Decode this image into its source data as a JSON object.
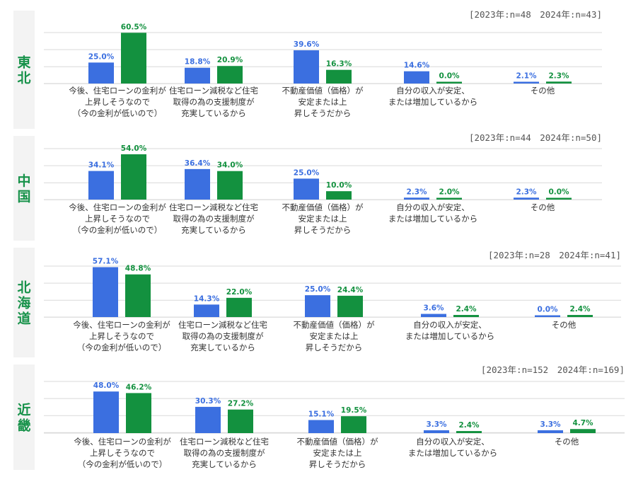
{
  "colors": {
    "year2023": "#3b6fe0",
    "year2024": "#13913f",
    "region_label": "#17924a"
  },
  "chart_data": [
    {
      "type": "bar",
      "region": "東北",
      "sample_note": "[2023年:n=48　2024年:n=43]",
      "categories": [
        "今後、住宅ローンの金利が\n上昇しそうなので\n（今の金利が低いので）",
        "住宅ローン減税など住宅\n取得の為の支援制度が\n充実しているから",
        "不動産価値（価格）が\n安定または上\n昇しそうだから",
        "自分の収入が安定、\nまたは増加しているから",
        "その他"
      ],
      "series": [
        {
          "values": [
            25.0,
            18.8,
            39.6,
            14.6,
            2.1
          ],
          "labels": [
            "25.0%",
            "18.8%",
            "39.6%",
            "14.6%",
            "2.1%"
          ]
        },
        {
          "values": [
            60.5,
            20.9,
            16.3,
            0.0,
            2.3
          ],
          "labels": [
            "60.5%",
            "20.9%",
            "16.3%",
            "0.0%",
            "2.3%"
          ]
        }
      ],
      "ylim": [
        0,
        60
      ]
    },
    {
      "type": "bar",
      "region": "中国",
      "sample_note": "[2023年:n=44　2024年:n=50]",
      "categories": [
        "今後、住宅ローンの金利が\n上昇しそうなので\n（今の金利が低いので）",
        "住宅ローン減税など住宅\n取得の為の支援制度が\n充実しているから",
        "不動産価値（価格）が\n安定または上\n昇しそうだから",
        "自分の収入が安定、\nまたは増加しているから",
        "その他"
      ],
      "series": [
        {
          "values": [
            34.1,
            36.4,
            25.0,
            2.3,
            2.3
          ],
          "labels": [
            "34.1%",
            "36.4%",
            "25.0%",
            "2.3%",
            "2.3%"
          ]
        },
        {
          "values": [
            54.0,
            34.0,
            10.0,
            2.0,
            0.0
          ],
          "labels": [
            "54.0%",
            "34.0%",
            "10.0%",
            "2.0%",
            "0.0%"
          ]
        }
      ],
      "ylim": [
        0,
        60
      ]
    },
    {
      "type": "bar",
      "region": "北海道",
      "sample_note": "[2023年:n=28　2024年:n=41]",
      "categories": [
        "今後、住宅ローンの金利が\n上昇しそうなので\n（今の金利が低いので）",
        "住宅ローン減税など住宅\n取得の為の支援制度が\n充実しているから",
        "不動産価値（価格）が\n安定または上\n昇しそうだから",
        "自分の収入が安定、\nまたは増加しているから",
        "その他"
      ],
      "series": [
        {
          "values": [
            57.1,
            14.3,
            25.0,
            3.6,
            0.0
          ],
          "labels": [
            "57.1%",
            "14.3%",
            "25.0%",
            "3.6%",
            "0.0%"
          ]
        },
        {
          "values": [
            48.8,
            22.0,
            24.4,
            2.4,
            2.4
          ],
          "labels": [
            "48.8%",
            "22.0%",
            "24.4%",
            "2.4%",
            "2.4%"
          ]
        }
      ],
      "ylim": [
        0,
        60
      ]
    },
    {
      "type": "bar",
      "region": "近畿",
      "sample_note": "[2023年:n=152　2024年:n=169]",
      "categories": [
        "今後、住宅ローンの金利が\n上昇しそうなので\n（今の金利が低いので）",
        "住宅ローン減税など住宅\n取得の為の支援制度が\n充実しているから",
        "不動産価値（価格）が\n安定または上\n昇しそうだから",
        "自分の収入が安定、\nまたは増加しているから",
        "その他"
      ],
      "series": [
        {
          "values": [
            48.0,
            30.3,
            15.1,
            3.3,
            3.3
          ],
          "labels": [
            "48.0%",
            "30.3%",
            "15.1%",
            "3.3%",
            "3.3%"
          ]
        },
        {
          "values": [
            46.2,
            27.2,
            19.5,
            2.4,
            4.7
          ],
          "labels": [
            "46.2%",
            "27.2%",
            "19.5%",
            "2.4%",
            "4.7%"
          ]
        }
      ],
      "ylim": [
        0,
        60
      ]
    }
  ]
}
